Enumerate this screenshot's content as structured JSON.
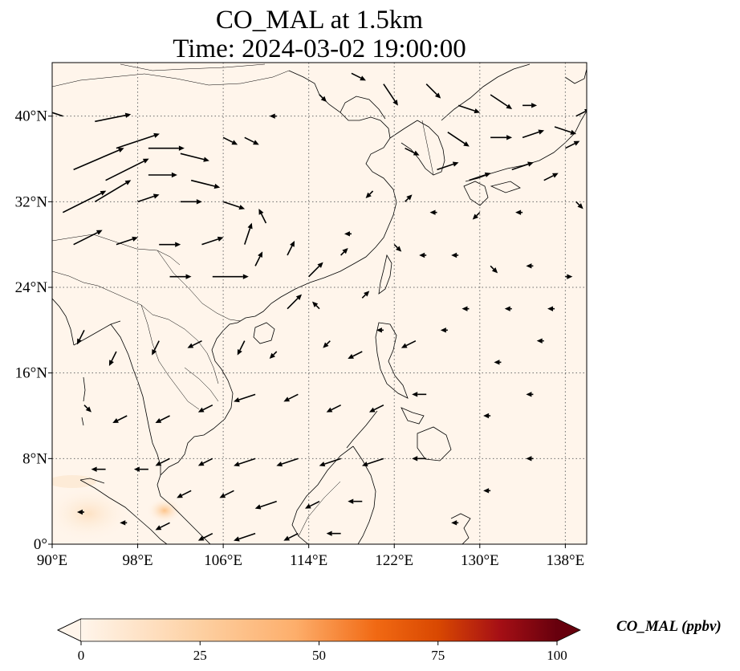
{
  "title": {
    "line1": "CO_MAL at 1.5km",
    "line2": "Time: 2024-03-02 19:00:00"
  },
  "map": {
    "lon_range": [
      90,
      140
    ],
    "lat_range": [
      0,
      45
    ],
    "x_ticks": [
      "90°E",
      "98°E",
      "106°E",
      "114°E",
      "122°E",
      "130°E",
      "138°E"
    ],
    "x_tick_values": [
      90,
      98,
      106,
      114,
      122,
      130,
      138
    ],
    "y_ticks": [
      "0°",
      "8°N",
      "16°N",
      "24°N",
      "32°N",
      "40°N"
    ],
    "y_tick_values": [
      0,
      8,
      16,
      24,
      32,
      40
    ],
    "gridlines": "dotted",
    "background_color": "#fff5eb",
    "coastline_color": "#000000",
    "vector_color": "#000000"
  },
  "colorbar": {
    "label": "CO_MAL (ppbv)",
    "ticks": [
      "0",
      "25",
      "50",
      "75",
      "100"
    ],
    "tick_values": [
      0,
      25,
      50,
      75,
      100
    ],
    "range": [
      0,
      100
    ],
    "colormap": "OrRd",
    "colors": [
      "#fff5eb",
      "#fdd0a2",
      "#fdae6b",
      "#f16913",
      "#d94801",
      "#a50f15",
      "#67000d"
    ],
    "extend": "both"
  },
  "wind_vectors": [
    {
      "lon": 91,
      "lat": 40,
      "u": -3,
      "v": 1
    },
    {
      "lon": 94,
      "lat": 39.5,
      "u": 5,
      "v": 1
    },
    {
      "lon": 96,
      "lat": 37,
      "u": 6,
      "v": 2
    },
    {
      "lon": 99,
      "lat": 37,
      "u": 5,
      "v": 0
    },
    {
      "lon": 102,
      "lat": 36.5,
      "u": 4,
      "v": -1
    },
    {
      "lon": 106,
      "lat": 38,
      "u": 2,
      "v": -1
    },
    {
      "lon": 92,
      "lat": 35,
      "u": 7,
      "v": 3
    },
    {
      "lon": 95,
      "lat": 34,
      "u": 6,
      "v": 3
    },
    {
      "lon": 99,
      "lat": 34.5,
      "u": 4,
      "v": 0
    },
    {
      "lon": 103,
      "lat": 34,
      "u": 4,
      "v": -1
    },
    {
      "lon": 91,
      "lat": 31,
      "u": 6,
      "v": 3
    },
    {
      "lon": 94,
      "lat": 32,
      "u": 5,
      "v": 3
    },
    {
      "lon": 98,
      "lat": 32,
      "u": 3,
      "v": 1
    },
    {
      "lon": 102,
      "lat": 32,
      "u": 3,
      "v": 0
    },
    {
      "lon": 106,
      "lat": 32,
      "u": 3,
      "v": -1
    },
    {
      "lon": 92,
      "lat": 28,
      "u": 4,
      "v": 2
    },
    {
      "lon": 96,
      "lat": 28,
      "u": 3,
      "v": 1
    },
    {
      "lon": 100,
      "lat": 28,
      "u": 3,
      "v": 0
    },
    {
      "lon": 104,
      "lat": 28,
      "u": 3,
      "v": 1
    },
    {
      "lon": 108,
      "lat": 28,
      "u": 1,
      "v": 3
    },
    {
      "lon": 110,
      "lat": 30,
      "u": -1,
      "v": 2
    },
    {
      "lon": 101,
      "lat": 25,
      "u": 3,
      "v": 0
    },
    {
      "lon": 105,
      "lat": 25,
      "u": 5,
      "v": 0
    },
    {
      "lon": 109,
      "lat": 26,
      "u": 1,
      "v": 2
    },
    {
      "lon": 112,
      "lat": 27,
      "u": 1,
      "v": 2
    },
    {
      "lon": 114,
      "lat": 25,
      "u": 2,
      "v": 2
    },
    {
      "lon": 117,
      "lat": 27,
      "u": 1,
      "v": 1
    },
    {
      "lon": 112,
      "lat": 22,
      "u": 2,
      "v": 2
    },
    {
      "lon": 115,
      "lat": 22,
      "u": -1,
      "v": 1
    },
    {
      "lon": 119,
      "lat": 23,
      "u": 1,
      "v": 1
    },
    {
      "lon": 108,
      "lat": 38,
      "u": 2,
      "v": -1
    },
    {
      "lon": 111,
      "lat": 40,
      "u": -1,
      "v": 0
    },
    {
      "lon": 115,
      "lat": 42,
      "u": 1,
      "v": -1
    },
    {
      "lon": 118,
      "lat": 44,
      "u": 2,
      "v": -1
    },
    {
      "lon": 121,
      "lat": 43,
      "u": 2,
      "v": -3
    },
    {
      "lon": 125,
      "lat": 43,
      "u": 2,
      "v": -2
    },
    {
      "lon": 128,
      "lat": 41,
      "u": 3,
      "v": -1
    },
    {
      "lon": 131,
      "lat": 42,
      "u": 3,
      "v": -2
    },
    {
      "lon": 134,
      "lat": 41,
      "u": 2,
      "v": 0
    },
    {
      "lon": 137,
      "lat": 39,
      "u": 3,
      "v": -1
    },
    {
      "lon": 139,
      "lat": 40,
      "u": 2,
      "v": 1
    },
    {
      "lon": 127,
      "lat": 38.5,
      "u": 3,
      "v": -2
    },
    {
      "lon": 131,
      "lat": 38,
      "u": 3,
      "v": 0
    },
    {
      "lon": 134,
      "lat": 38,
      "u": 3,
      "v": 1
    },
    {
      "lon": 138,
      "lat": 37,
      "u": 2,
      "v": 1
    },
    {
      "lon": 123,
      "lat": 37,
      "u": 2,
      "v": -1
    },
    {
      "lon": 126,
      "lat": 35,
      "u": 3,
      "v": 1
    },
    {
      "lon": 129,
      "lat": 34,
      "u": 3,
      "v": 1
    },
    {
      "lon": 133,
      "lat": 35,
      "u": 3,
      "v": 1
    },
    {
      "lon": 136,
      "lat": 34,
      "u": 2,
      "v": 1
    },
    {
      "lon": 139,
      "lat": 32,
      "u": 1,
      "v": -1
    },
    {
      "lon": 120,
      "lat": 33,
      "u": -1,
      "v": -1
    },
    {
      "lon": 123,
      "lat": 32,
      "u": 1,
      "v": 1
    },
    {
      "lon": 126,
      "lat": 31,
      "u": -1,
      "v": 0
    },
    {
      "lon": 130,
      "lat": 31,
      "u": -1,
      "v": -1
    },
    {
      "lon": 134,
      "lat": 31,
      "u": -1,
      "v": 0
    },
    {
      "lon": 118,
      "lat": 29,
      "u": -1,
      "v": 0
    },
    {
      "lon": 122,
      "lat": 28,
      "u": 1,
      "v": -1
    },
    {
      "lon": 125,
      "lat": 27,
      "u": -1,
      "v": 0
    },
    {
      "lon": 128,
      "lat": 27,
      "u": -1,
      "v": 0
    },
    {
      "lon": 131,
      "lat": 26,
      "u": 1,
      "v": -1
    },
    {
      "lon": 135,
      "lat": 26,
      "u": -1,
      "v": 0
    },
    {
      "lon": 138,
      "lat": 25,
      "u": 1,
      "v": 0
    },
    {
      "lon": 121,
      "lat": 20,
      "u": -1,
      "v": 0
    },
    {
      "lon": 124,
      "lat": 19,
      "u": -2,
      "v": -1
    },
    {
      "lon": 127,
      "lat": 20,
      "u": -1,
      "v": 0
    },
    {
      "lon": 116,
      "lat": 19,
      "u": -1,
      "v": -1
    },
    {
      "lon": 119,
      "lat": 18,
      "u": -2,
      "v": -1
    },
    {
      "lon": 111,
      "lat": 18,
      "u": -1,
      "v": -1
    },
    {
      "lon": 108,
      "lat": 19,
      "u": -1,
      "v": -2
    },
    {
      "lon": 104,
      "lat": 19,
      "u": -2,
      "v": -1
    },
    {
      "lon": 100,
      "lat": 19,
      "u": -1,
      "v": -2
    },
    {
      "lon": 96,
      "lat": 18,
      "u": -1,
      "v": -2
    },
    {
      "lon": 93,
      "lat": 20,
      "u": -1,
      "v": -2
    },
    {
      "lon": 93,
      "lat": 13,
      "u": 1,
      "v": -1
    },
    {
      "lon": 97,
      "lat": 12,
      "u": -2,
      "v": -1
    },
    {
      "lon": 101,
      "lat": 12,
      "u": -2,
      "v": -1
    },
    {
      "lon": 105,
      "lat": 13,
      "u": -2,
      "v": -1
    },
    {
      "lon": 109,
      "lat": 14,
      "u": -3,
      "v": -1
    },
    {
      "lon": 113,
      "lat": 14,
      "u": -2,
      "v": -1
    },
    {
      "lon": 117,
      "lat": 13,
      "u": -2,
      "v": -1
    },
    {
      "lon": 121,
      "lat": 13,
      "u": -2,
      "v": -1
    },
    {
      "lon": 125,
      "lat": 14,
      "u": -2,
      "v": 0
    },
    {
      "lon": 101,
      "lat": 8,
      "u": -2,
      "v": -1
    },
    {
      "lon": 105,
      "lat": 8,
      "u": -2,
      "v": -1
    },
    {
      "lon": 109,
      "lat": 8,
      "u": -3,
      "v": -1
    },
    {
      "lon": 113,
      "lat": 8,
      "u": -3,
      "v": -1
    },
    {
      "lon": 117,
      "lat": 8,
      "u": -3,
      "v": -1
    },
    {
      "lon": 121,
      "lat": 8,
      "u": -3,
      "v": -1
    },
    {
      "lon": 125,
      "lat": 8,
      "u": -2,
      "v": 0
    },
    {
      "lon": 95,
      "lat": 7,
      "u": -2,
      "v": 0
    },
    {
      "lon": 99,
      "lat": 7,
      "u": -2,
      "v": 0
    },
    {
      "lon": 103,
      "lat": 5,
      "u": -2,
      "v": -1
    },
    {
      "lon": 107,
      "lat": 5,
      "u": -2,
      "v": -1
    },
    {
      "lon": 111,
      "lat": 4,
      "u": -3,
      "v": -1
    },
    {
      "lon": 115,
      "lat": 4,
      "u": -2,
      "v": -1
    },
    {
      "lon": 119,
      "lat": 4,
      "u": -2,
      "v": 0
    },
    {
      "lon": 93,
      "lat": 3,
      "u": -1,
      "v": 0
    },
    {
      "lon": 97,
      "lat": 2,
      "u": -1,
      "v": 0
    },
    {
      "lon": 101,
      "lat": 2,
      "u": -2,
      "v": -1
    },
    {
      "lon": 105,
      "lat": 1,
      "u": -2,
      "v": -1
    },
    {
      "lon": 109,
      "lat": 1,
      "u": -3,
      "v": -1
    },
    {
      "lon": 113,
      "lat": 1,
      "u": -2,
      "v": -1
    },
    {
      "lon": 117,
      "lat": 1,
      "u": -2,
      "v": 0
    },
    {
      "lon": 128,
      "lat": 2,
      "u": -1,
      "v": 0
    },
    {
      "lon": 131,
      "lat": 5,
      "u": -1,
      "v": 0
    },
    {
      "lon": 135,
      "lat": 8,
      "u": -1,
      "v": 0
    },
    {
      "lon": 131,
      "lat": 12,
      "u": -1,
      "v": 0
    },
    {
      "lon": 135,
      "lat": 14,
      "u": -1,
      "v": 0
    },
    {
      "lon": 132,
      "lat": 17,
      "u": -1,
      "v": 0
    },
    {
      "lon": 136,
      "lat": 19,
      "u": -1,
      "v": 0
    },
    {
      "lon": 129,
      "lat": 22,
      "u": -1,
      "v": 0
    },
    {
      "lon": 133,
      "lat": 22,
      "u": -1,
      "v": 0
    },
    {
      "lon": 137,
      "lat": 22,
      "u": -1,
      "v": 0
    }
  ]
}
